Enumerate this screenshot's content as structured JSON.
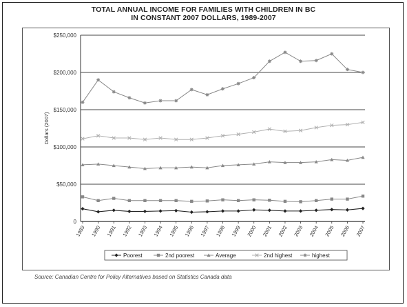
{
  "chart_data": {
    "type": "line",
    "title": "TOTAL ANNUAL INCOME FOR FAMILIES WITH CHILDREN IN BC",
    "subtitle": "IN CONSTANT 2007 DOLLARS, 1989-2007",
    "ylabel": "Dollars (2007)",
    "xlabel": "",
    "ylim": [
      0,
      250000
    ],
    "yticks": [
      0,
      50000,
      100000,
      150000,
      200000,
      250000
    ],
    "ytick_labels": [
      "0",
      "$50,000",
      "$100,000",
      "$150,000",
      "$200,000",
      "$250,000"
    ],
    "grid": true,
    "legend_position": "bottom",
    "x": [
      "1989",
      "1990",
      "1991",
      "1992",
      "1993",
      "1994",
      "1995",
      "1996",
      "1997",
      "1998",
      "1999",
      "2000",
      "2001",
      "2002",
      "2003",
      "2004",
      "2005",
      "2006",
      "2007"
    ],
    "series": [
      {
        "name": "Poorest",
        "marker": "diamond",
        "color": "#222222",
        "values": [
          17000,
          13000,
          15000,
          13500,
          13500,
          14000,
          14500,
          12500,
          13000,
          14000,
          14000,
          15500,
          15000,
          14000,
          14000,
          15000,
          16000,
          15500,
          17500
        ]
      },
      {
        "name": "2nd poorest",
        "marker": "square",
        "color": "#888888",
        "values": [
          33000,
          28000,
          31000,
          28000,
          28000,
          28000,
          28000,
          27000,
          27500,
          29000,
          28000,
          29000,
          28500,
          27000,
          26500,
          28000,
          30000,
          30000,
          34000
        ]
      },
      {
        "name": "Average",
        "marker": "triangle",
        "color": "#888888",
        "values": [
          76000,
          77000,
          75000,
          73000,
          71000,
          72000,
          72000,
          73000,
          72000,
          75000,
          76000,
          77000,
          80000,
          79000,
          79000,
          80000,
          83000,
          82000,
          86000
        ]
      },
      {
        "name": "2nd highest",
        "marker": "x",
        "color": "#b0b0b0",
        "values": [
          111000,
          115000,
          112000,
          112000,
          110000,
          112000,
          110000,
          110000,
          112000,
          115000,
          117000,
          120000,
          124000,
          121000,
          122000,
          126000,
          129000,
          130000,
          133000
        ]
      },
      {
        "name": "highest",
        "marker": "star",
        "color": "#888888",
        "values": [
          160000,
          190000,
          174000,
          166000,
          159000,
          162000,
          162000,
          177000,
          170000,
          178000,
          185000,
          193000,
          215000,
          227000,
          215000,
          216000,
          225000,
          204000,
          200000
        ]
      }
    ],
    "source": "Source: Canadian Centre for Policy Alternatives based on Statistics Canada data"
  }
}
